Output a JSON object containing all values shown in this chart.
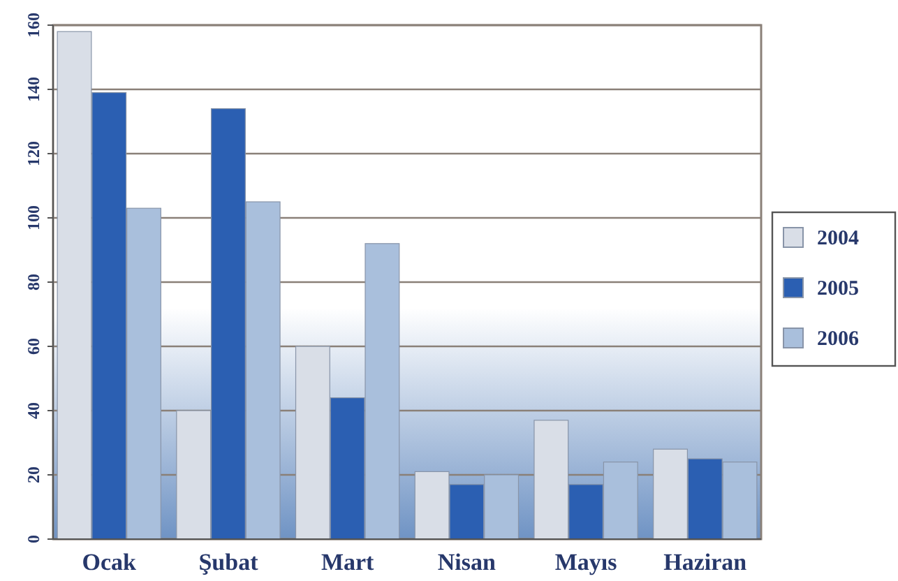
{
  "chart_data": {
    "type": "bar",
    "categories": [
      "Ocak",
      "Şubat",
      "Mart",
      "Nisan",
      "Mayıs",
      "Haziran"
    ],
    "series": [
      {
        "name": "2004",
        "color": "#d9dee7",
        "values": [
          158,
          40,
          60,
          21,
          37,
          28
        ]
      },
      {
        "name": "2005",
        "color": "#2b5fb2",
        "values": [
          139,
          134,
          44,
          17,
          17,
          25
        ]
      },
      {
        "name": "2006",
        "color": "#a9bfdc",
        "values": [
          103,
          105,
          92,
          20,
          24,
          24
        ]
      }
    ],
    "ylim": [
      0,
      160
    ],
    "yticks": [
      0,
      20,
      40,
      60,
      80,
      100,
      120,
      140,
      160
    ],
    "grid": "y",
    "legend": "right"
  }
}
